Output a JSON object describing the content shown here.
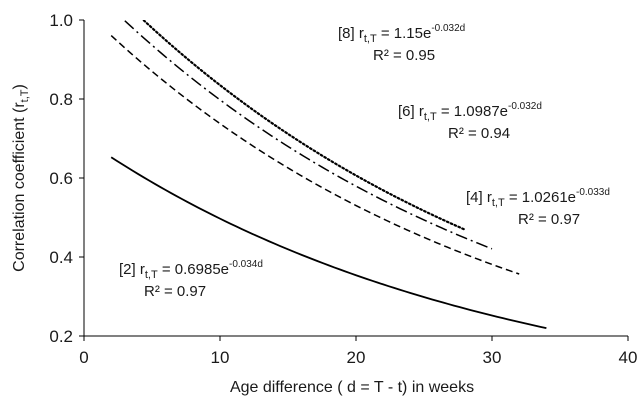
{
  "chart_data": {
    "type": "line",
    "xlabel": "Age difference ( d = T - t) in weeks",
    "ylabel": "Correlation coefficient (r",
    "ylabel_sub": "t,T",
    "ylabel_end": ")",
    "xlim": [
      0,
      40
    ],
    "ylim": [
      0.2,
      1.0
    ],
    "xticks": [
      "0",
      "10",
      "20",
      "30",
      "40"
    ],
    "yticks": [
      "0.2",
      "0.4",
      "0.6",
      "0.8",
      "1.0"
    ],
    "grid": false,
    "series": [
      {
        "label": "[2]",
        "a": 0.6985,
        "b": -0.034,
        "x_range": [
          2,
          34
        ],
        "style": "solid",
        "equation": {
          "prefix": "[2] r",
          "sub": "t,T",
          "mid": " = 0.6985e",
          "sup": "-0.034d"
        },
        "r2": "R² = 0.97"
      },
      {
        "label": "[4]",
        "a": 1.0261,
        "b": -0.033,
        "x_range": [
          2,
          32
        ],
        "style": "dashed",
        "equation": {
          "prefix": "[4] r",
          "sub": "t,T",
          "mid": " = 1.0261e",
          "sup": "-0.033d"
        },
        "r2": "R² = 0.97"
      },
      {
        "label": "[6]",
        "a": 1.0987,
        "b": -0.032,
        "x_range": [
          3,
          30
        ],
        "style": "dashdot",
        "equation": {
          "prefix": "[6] r",
          "sub": "t,T",
          "mid": " = 1.0987e",
          "sup": "-0.032d"
        },
        "r2": "R² = 0.94"
      },
      {
        "label": "[8]",
        "a": 1.15,
        "b": -0.032,
        "x_range": [
          4.4,
          28
        ],
        "style": "dotted",
        "equation": {
          "prefix": "[8] r",
          "sub": "t,T",
          "mid": " = 1.15e",
          "sup": "-0.032d"
        },
        "r2": "R² = 0.95"
      }
    ]
  }
}
